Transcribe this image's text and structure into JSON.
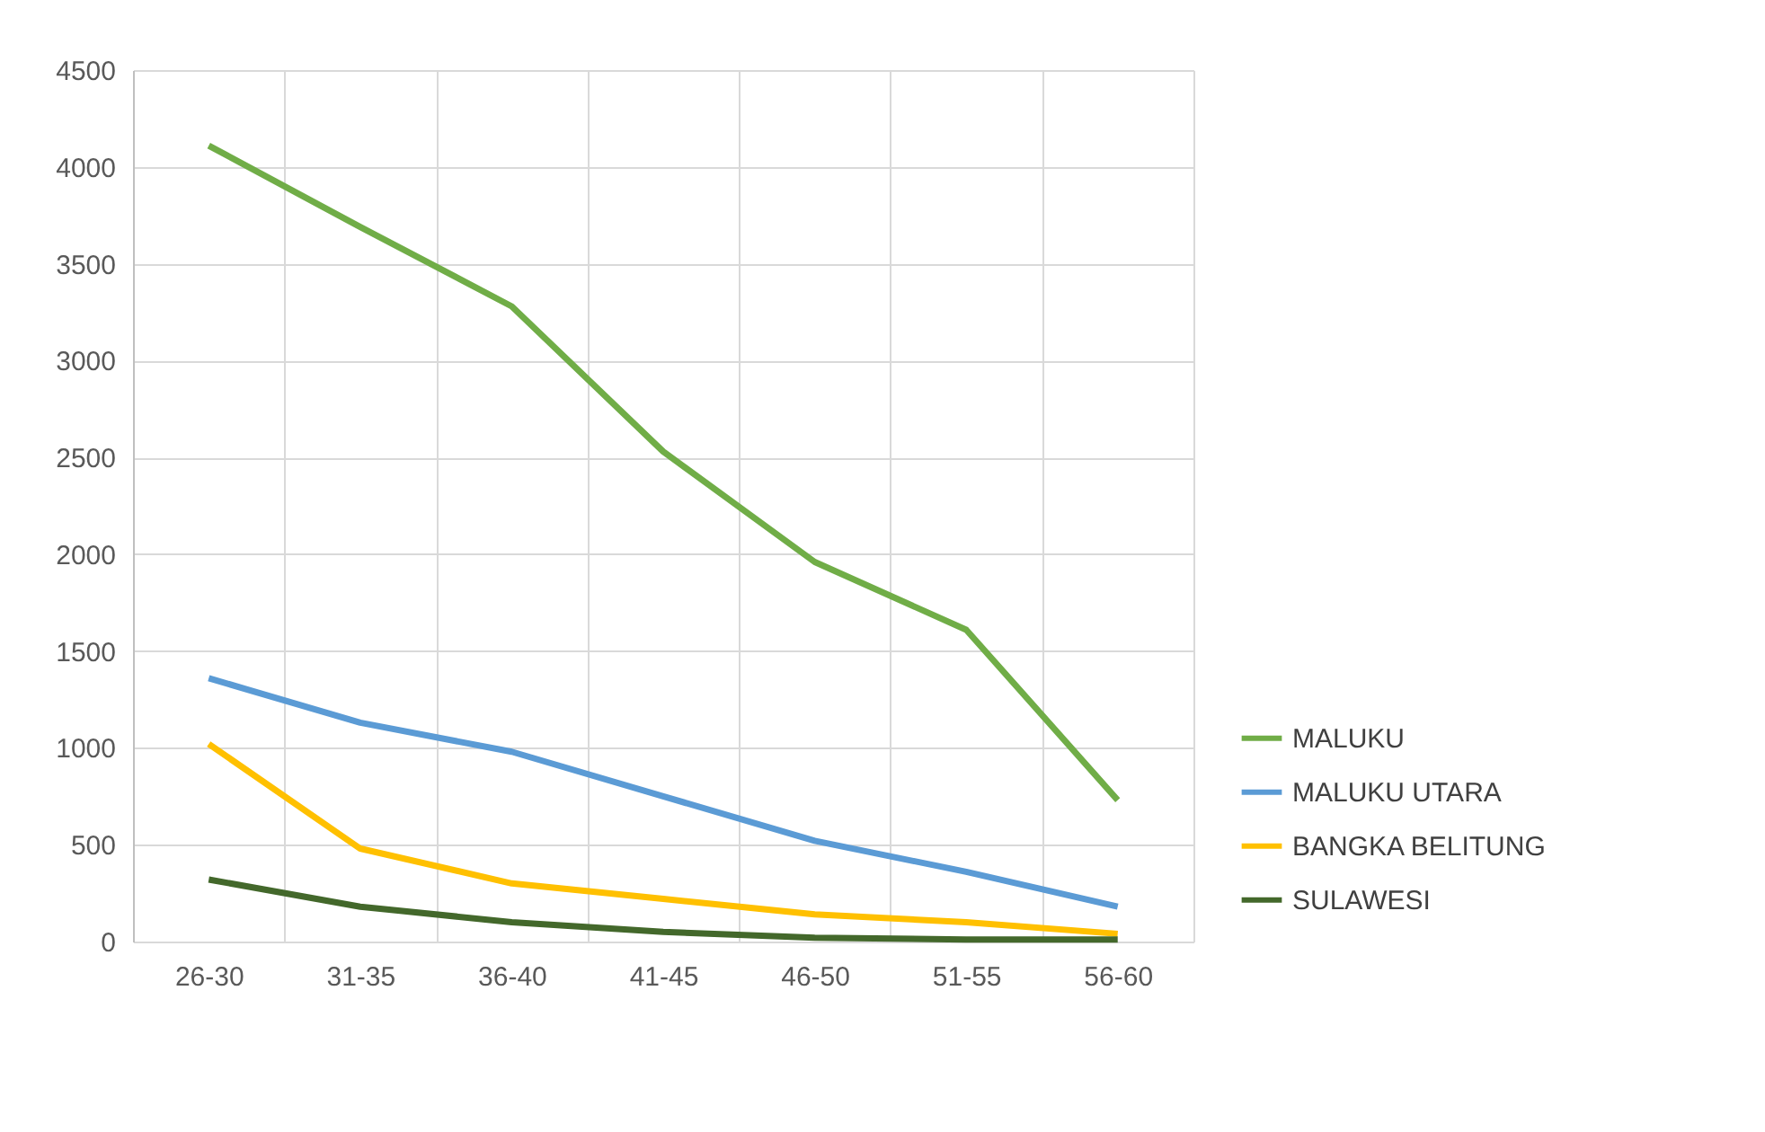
{
  "chart_data": {
    "type": "line",
    "categories": [
      "26-30",
      "31-35",
      "36-40",
      "41-45",
      "46-50",
      "51-55",
      "56-60"
    ],
    "series": [
      {
        "name": "MALUKU",
        "color": "#70ad47",
        "values": [
          4110,
          3690,
          3280,
          2530,
          1960,
          1610,
          730
        ]
      },
      {
        "name": "MALUKU UTARA",
        "color": "#5b9bd5",
        "values": [
          1360,
          1130,
          980,
          750,
          520,
          360,
          180
        ]
      },
      {
        "name": "BANGKA BELITUNG",
        "color": "#ffc000",
        "values": [
          1020,
          480,
          300,
          220,
          140,
          100,
          40
        ]
      },
      {
        "name": "SULAWESI",
        "color": "#43682b",
        "values": [
          320,
          180,
          100,
          50,
          20,
          10,
          10
        ]
      }
    ],
    "ylim": [
      0,
      4500
    ],
    "yticks": [
      0,
      500,
      1000,
      1500,
      2000,
      2500,
      3000,
      3500,
      4000,
      4500
    ],
    "grid": true,
    "legend": "right",
    "marker": "none",
    "line_style": "solid"
  }
}
